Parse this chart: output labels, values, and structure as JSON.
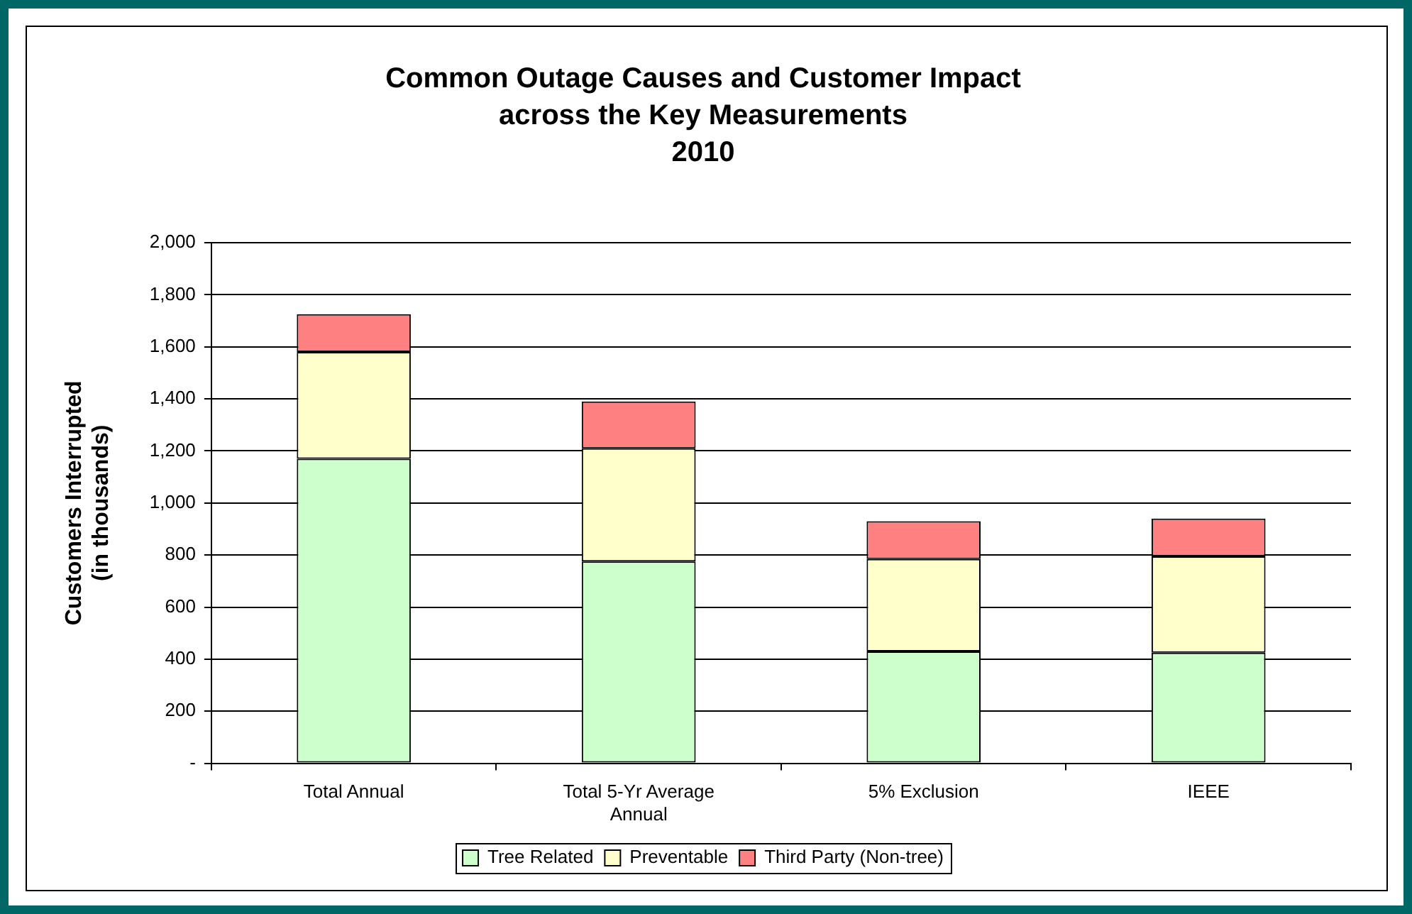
{
  "chart_data": {
    "type": "bar",
    "stacked": true,
    "title": "Common Outage Causes and Customer Impact\nacross the Key Measurements\n2010",
    "ylabel": "Customers Interrupted\n(in thousands)",
    "categories": [
      "Total Annual",
      "Total 5-Yr Average\nAnnual",
      "5% Exclusion",
      "IEEE"
    ],
    "series": [
      {
        "name": "Tree Related",
        "color": "#ccffcc",
        "values": [
          1170,
          775,
          430,
          425
        ]
      },
      {
        "name": "Preventable",
        "color": "#ffffcc",
        "values": [
          410,
          435,
          355,
          370
        ]
      },
      {
        "name": "Third Party (Non-tree)",
        "color": "#ff8080",
        "values": [
          145,
          180,
          145,
          145
        ]
      }
    ],
    "ylim": [
      0,
      2000
    ],
    "yticks": [
      {
        "value": 0,
        "label": "-"
      },
      {
        "value": 200,
        "label": "200"
      },
      {
        "value": 400,
        "label": "400"
      },
      {
        "value": 600,
        "label": "600"
      },
      {
        "value": 800,
        "label": "800"
      },
      {
        "value": 1000,
        "label": "1,000"
      },
      {
        "value": 1200,
        "label": "1,200"
      },
      {
        "value": 1400,
        "label": "1,400"
      },
      {
        "value": 1600,
        "label": "1,600"
      },
      {
        "value": 1800,
        "label": "1,800"
      },
      {
        "value": 2000,
        "label": "2,000"
      }
    ],
    "grid": "y",
    "legend": "bottom"
  }
}
